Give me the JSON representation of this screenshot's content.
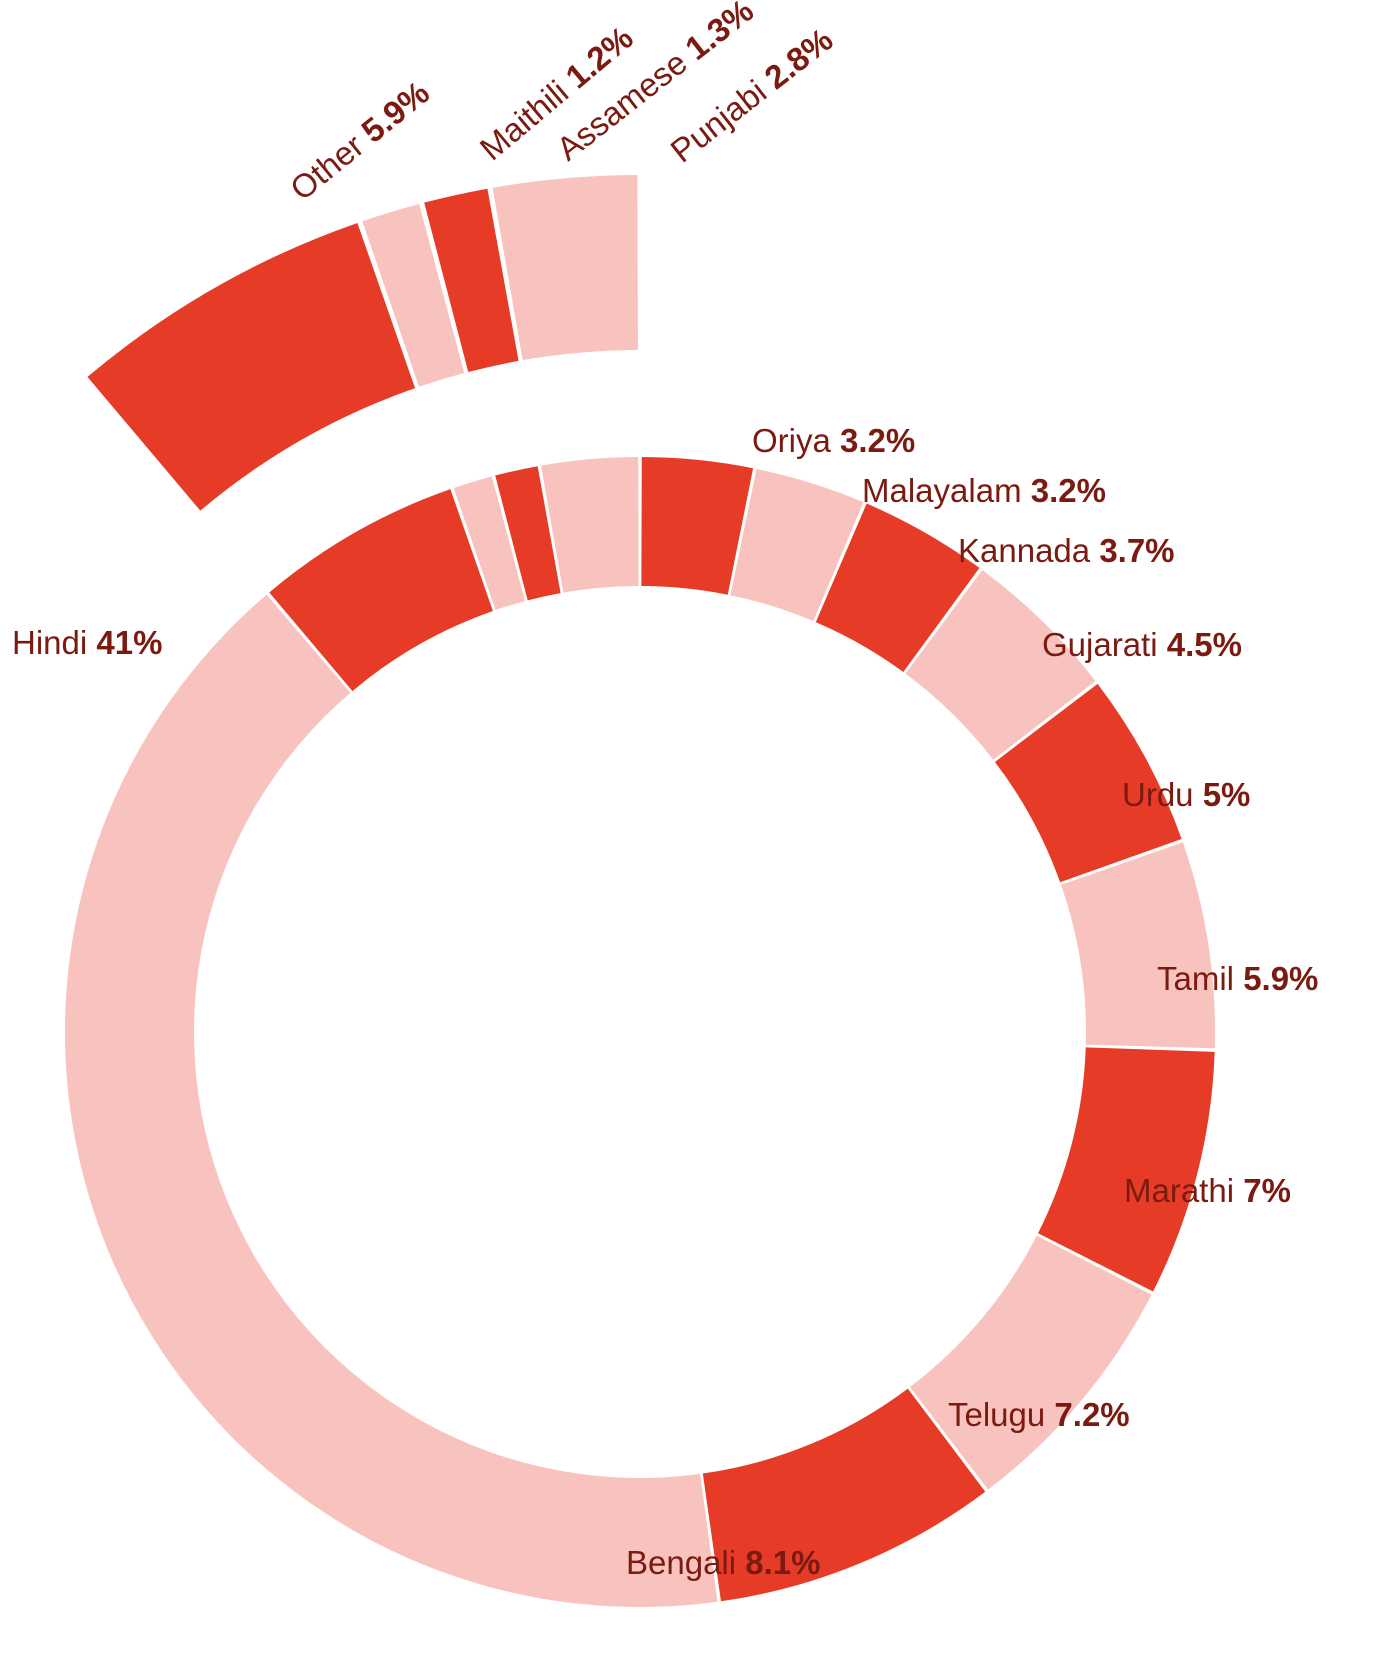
{
  "chart_data": {
    "type": "donut",
    "title": "",
    "colors": {
      "dark": "#e63c27",
      "light": "#f8c3be",
      "label": "#7a1a10"
    },
    "slices": [
      {
        "name": "Oriya",
        "pct_label": "3.2%",
        "value": 3.2,
        "color": "dark"
      },
      {
        "name": "Malayalam",
        "pct_label": "3.2%",
        "value": 3.2,
        "color": "light"
      },
      {
        "name": "Kannada",
        "pct_label": "3.7%",
        "value": 3.7,
        "color": "dark"
      },
      {
        "name": "Gujarati",
        "pct_label": "4.5%",
        "value": 4.5,
        "color": "light"
      },
      {
        "name": "Urdu",
        "pct_label": "5%",
        "value": 5.0,
        "color": "dark"
      },
      {
        "name": "Tamil",
        "pct_label": "5.9%",
        "value": 5.9,
        "color": "light"
      },
      {
        "name": "Marathi",
        "pct_label": "7%",
        "value": 7.0,
        "color": "dark"
      },
      {
        "name": "Telugu",
        "pct_label": "7.2%",
        "value": 7.2,
        "color": "light"
      },
      {
        "name": "Bengali",
        "pct_label": "8.1%",
        "value": 8.1,
        "color": "dark"
      },
      {
        "name": "Hindi",
        "pct_label": "41%",
        "value": 41.0,
        "color": "light"
      },
      {
        "name": "Other",
        "pct_label": "5.9%",
        "value": 5.9,
        "color": "dark",
        "exploded": true
      },
      {
        "name": "Maithili",
        "pct_label": "1.2%",
        "value": 1.2,
        "color": "light",
        "exploded": true
      },
      {
        "name": "Assamese",
        "pct_label": "1.3%",
        "value": 1.3,
        "color": "dark",
        "exploded": true
      },
      {
        "name": "Punjabi",
        "pct_label": "2.8%",
        "value": 2.8,
        "color": "light",
        "exploded": true
      }
    ]
  }
}
